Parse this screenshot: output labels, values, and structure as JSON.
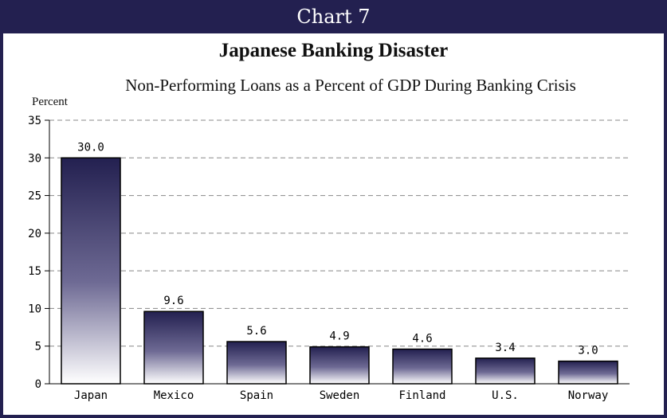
{
  "header": {
    "label": "Chart 7"
  },
  "chart_data": {
    "type": "bar",
    "title": "Japanese Banking Disaster",
    "subtitle": "Non-Performing Loans as a Percent of GDP During Banking Crisis",
    "ylabel": "Percent",
    "xlabel": "",
    "categories": [
      "Japan",
      "Mexico",
      "Spain",
      "Sweden",
      "Finland",
      "U.S.",
      "Norway"
    ],
    "values": [
      30.0,
      9.6,
      5.6,
      4.9,
      4.6,
      3.4,
      3.0
    ],
    "value_labels": [
      "30.0",
      "9.6",
      "5.6",
      "4.9",
      "4.6",
      "3.4",
      "3.0"
    ],
    "ylim": [
      0,
      35
    ],
    "yticks": [
      0,
      5,
      10,
      15,
      20,
      25,
      30,
      35
    ],
    "grid": true,
    "colors": {
      "bar_top": "#232050",
      "bar_bottom": "#ffffff",
      "frame": "#232050",
      "grid": "#888888"
    }
  }
}
